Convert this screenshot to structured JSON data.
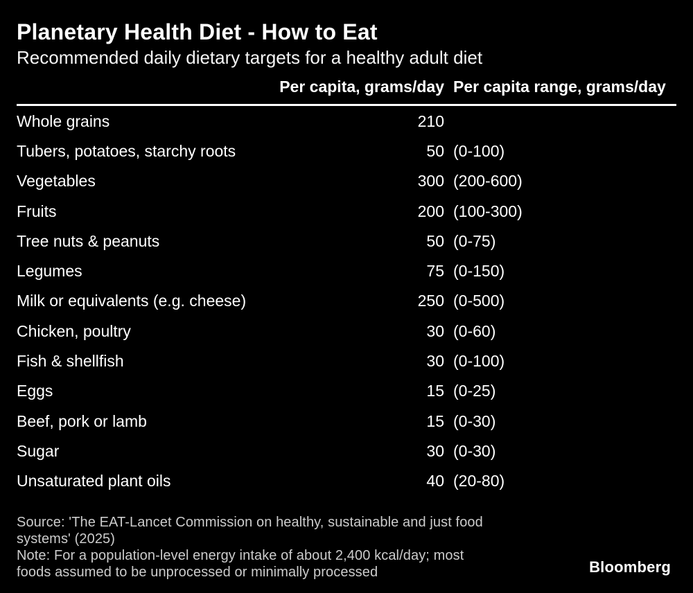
{
  "header": {
    "title": "Planetary Health Diet - How to Eat",
    "subtitle": "Recommended daily dietary targets for a healthy adult diet"
  },
  "table": {
    "col_percapita": "Per capita, grams/day",
    "col_range": "Per capita range, grams/day",
    "rows": [
      {
        "label": "Whole grains",
        "value": "210",
        "range": ""
      },
      {
        "label": "Tubers, potatoes, starchy roots",
        "value": "50",
        "range": "(0-100)"
      },
      {
        "label": "Vegetables",
        "value": "300",
        "range": "(200-600)"
      },
      {
        "label": "Fruits",
        "value": "200",
        "range": "(100-300)"
      },
      {
        "label": "Tree nuts & peanuts",
        "value": "50",
        "range": "(0-75)"
      },
      {
        "label": "Legumes",
        "value": "75",
        "range": "(0-150)"
      },
      {
        "label": "Milk or equivalents (e.g. cheese)",
        "value": "250",
        "range": "(0-500)"
      },
      {
        "label": "Chicken, poultry",
        "value": "30",
        "range": "(0-60)"
      },
      {
        "label": "Fish & shellfish",
        "value": "30",
        "range": "(0-100)"
      },
      {
        "label": "Eggs",
        "value": "15",
        "range": "(0-25)"
      },
      {
        "label": "Beef, pork or lamb",
        "value": "15",
        "range": "(0-30)"
      },
      {
        "label": "Sugar",
        "value": "30",
        "range": "(0-30)"
      },
      {
        "label": "Unsaturated plant oils",
        "value": "40",
        "range": "(20-80)"
      }
    ]
  },
  "footer": {
    "source_line1": "Source: 'The EAT-Lancet Commission on healthy, sustainable and just food",
    "source_line2": "systems' (2025)",
    "note_line1": "Note: For a population-level energy intake of about 2,400 kcal/day; most",
    "note_line2": "foods assumed to be unprocessed or minimally processed",
    "brand": "Bloomberg"
  },
  "colors": {
    "background": "#000000",
    "text": "#ffffff",
    "muted_text": "#cccccc",
    "rule": "#ffffff"
  },
  "chart_data": {
    "type": "table",
    "title": "Planetary Health Diet - How to Eat",
    "subtitle": "Recommended daily dietary targets for a healthy adult diet",
    "columns": [
      "Food group",
      "Per capita, grams/day",
      "Per capita range, grams/day"
    ],
    "rows": [
      {
        "food_group": "Whole grains",
        "per_capita_g_day": 210,
        "range_g_day": null
      },
      {
        "food_group": "Tubers, potatoes, starchy roots",
        "per_capita_g_day": 50,
        "range_g_day": [
          0,
          100
        ]
      },
      {
        "food_group": "Vegetables",
        "per_capita_g_day": 300,
        "range_g_day": [
          200,
          600
        ]
      },
      {
        "food_group": "Fruits",
        "per_capita_g_day": 200,
        "range_g_day": [
          100,
          300
        ]
      },
      {
        "food_group": "Tree nuts & peanuts",
        "per_capita_g_day": 50,
        "range_g_day": [
          0,
          75
        ]
      },
      {
        "food_group": "Legumes",
        "per_capita_g_day": 75,
        "range_g_day": [
          0,
          150
        ]
      },
      {
        "food_group": "Milk or equivalents (e.g. cheese)",
        "per_capita_g_day": 250,
        "range_g_day": [
          0,
          500
        ]
      },
      {
        "food_group": "Chicken, poultry",
        "per_capita_g_day": 30,
        "range_g_day": [
          0,
          60
        ]
      },
      {
        "food_group": "Fish & shellfish",
        "per_capita_g_day": 30,
        "range_g_day": [
          0,
          100
        ]
      },
      {
        "food_group": "Eggs",
        "per_capita_g_day": 15,
        "range_g_day": [
          0,
          25
        ]
      },
      {
        "food_group": "Beef, pork or lamb",
        "per_capita_g_day": 15,
        "range_g_day": [
          0,
          30
        ]
      },
      {
        "food_group": "Sugar",
        "per_capita_g_day": 30,
        "range_g_day": [
          0,
          30
        ]
      },
      {
        "food_group": "Unsaturated plant oils",
        "per_capita_g_day": 40,
        "range_g_day": [
          20,
          80
        ]
      }
    ],
    "source": "Source: 'The EAT-Lancet Commission on healthy, sustainable and just food systems' (2025)",
    "note": "Note: For a population-level energy intake of about 2,400 kcal/day; most foods assumed to be unprocessed or minimally processed",
    "brand": "Bloomberg"
  }
}
